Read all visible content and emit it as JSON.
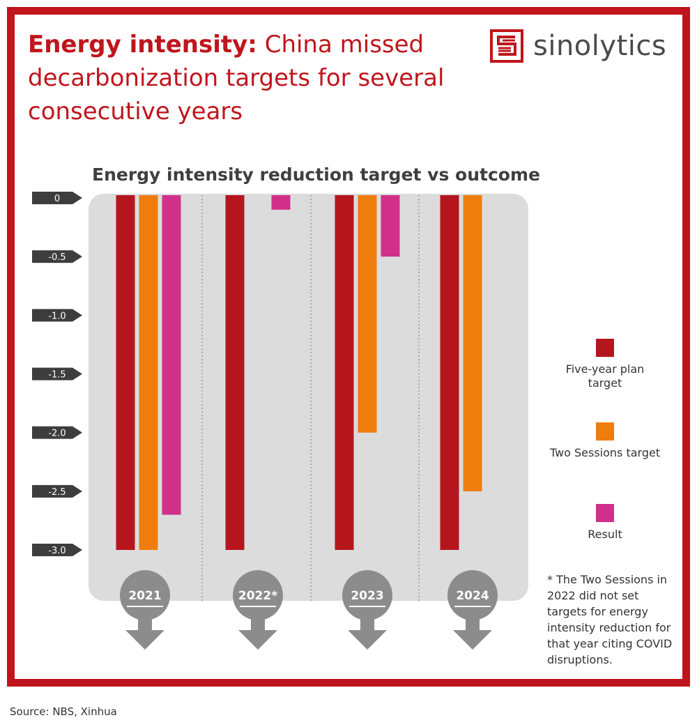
{
  "header": {
    "title_bold": "Energy intensity:",
    "title_rest": " China missed decarbonization targets for several consecutive years",
    "logo_text": "sinolytics"
  },
  "chart_data": {
    "type": "bar",
    "title": "Energy intensity reduction target vs outcome",
    "categories": [
      "2021",
      "2022*",
      "2023",
      "2024"
    ],
    "yticks": [
      "0",
      "-0.5",
      "-1.0",
      "-1.5",
      "-2.0",
      "-2.5",
      "-3.0"
    ],
    "ylim": [
      -3.0,
      0
    ],
    "series": [
      {
        "name": "Five-year plan target",
        "color": "#b5161d",
        "values": [
          -3.0,
          -3.0,
          -3.0,
          -3.0
        ]
      },
      {
        "name": "Two Sessions target",
        "color": "#ef7d0d",
        "values": [
          -3.0,
          null,
          -2.0,
          -2.5
        ]
      },
      {
        "name": "Result",
        "color": "#d0308a",
        "values": [
          -2.7,
          -0.1,
          -0.5,
          null
        ]
      }
    ],
    "legend_position": "right",
    "grid": false
  },
  "legend": {
    "items": [
      {
        "label": "Five-year plan target",
        "color": "#b5161d"
      },
      {
        "label": "Two Sessions target",
        "color": "#ef7d0d"
      },
      {
        "label": "Result",
        "color": "#d0308a"
      }
    ]
  },
  "note": "* The Two Sessions in 2022 did not set targets for energy intensity reduction for that year citing COVID disruptions.",
  "source": "Source: NBS, Xinhua",
  "colors": {
    "frame": "#c0151c",
    "panel": "#dcdcdc",
    "tick_bg": "#3d3d3d",
    "year_badge": "#8c8c8c"
  }
}
